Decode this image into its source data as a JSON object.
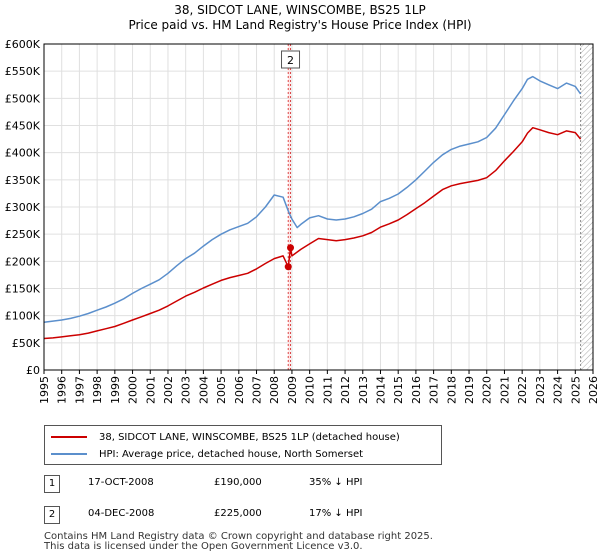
{
  "title_line1": "38, SIDCOT LANE, WINSCOMBE, BS25 1LP",
  "title_line2": "Price paid vs. HM Land Registry's House Price Index (HPI)",
  "legend": {
    "property_label": "38, SIDCOT LANE, WINSCOMBE, BS25 1LP (detached house)",
    "hpi_label": "HPI: Average price, detached house, North Somerset"
  },
  "transactions": [
    {
      "num": "1",
      "date": "17-OCT-2008",
      "price": "£190,000",
      "delta": "35% ↓ HPI"
    },
    {
      "num": "2",
      "date": "04-DEC-2008",
      "price": "£225,000",
      "delta": "17% ↓ HPI"
    }
  ],
  "footer_line1": "Contains HM Land Registry data © Crown copyright and database right 2025.",
  "footer_line2": "This data is licensed under the Open Government Licence v3.0.",
  "colors": {
    "property": "#cc0000",
    "hpi": "#5b8fcc",
    "grid": "#e0e0e0",
    "marker_band": "#ffdddd"
  },
  "chart_data": {
    "type": "line",
    "xlim": [
      1995,
      2026
    ],
    "ylim": [
      0,
      600000
    ],
    "x_ticks": [
      1995,
      1996,
      1997,
      1998,
      1999,
      2000,
      2001,
      2002,
      2003,
      2004,
      2005,
      2006,
      2007,
      2008,
      2009,
      2010,
      2011,
      2012,
      2013,
      2014,
      2015,
      2016,
      2017,
      2018,
      2019,
      2020,
      2021,
      2022,
      2023,
      2024,
      2025,
      2026
    ],
    "y_ticks": [
      {
        "value": 0,
        "label": "£0"
      },
      {
        "value": 50000,
        "label": "£50K"
      },
      {
        "value": 100000,
        "label": "£100K"
      },
      {
        "value": 150000,
        "label": "£150K"
      },
      {
        "value": 200000,
        "label": "£200K"
      },
      {
        "value": 250000,
        "label": "£250K"
      },
      {
        "value": 300000,
        "label": "£300K"
      },
      {
        "value": 350000,
        "label": "£350K"
      },
      {
        "value": 400000,
        "label": "£400K"
      },
      {
        "value": 450000,
        "label": "£450K"
      },
      {
        "value": 500000,
        "label": "£500K"
      },
      {
        "value": 550000,
        "label": "£550K"
      },
      {
        "value": 600000,
        "label": "£600K"
      }
    ],
    "series": [
      {
        "name": "HPI: Average price, detached house, North Somerset",
        "x": [
          1995,
          1995.5,
          1996,
          1996.5,
          1997,
          1997.5,
          1998,
          1998.5,
          1999,
          1999.5,
          2000,
          2000.5,
          2001,
          2001.5,
          2002,
          2002.5,
          2003,
          2003.5,
          2004,
          2004.5,
          2005,
          2005.5,
          2006,
          2006.5,
          2007,
          2007.5,
          2008,
          2008.5,
          2008.8,
          2009,
          2009.3,
          2009.5,
          2010,
          2010.5,
          2011,
          2011.5,
          2012,
          2012.5,
          2013,
          2013.5,
          2014,
          2014.5,
          2015,
          2015.5,
          2016,
          2016.5,
          2017,
          2017.5,
          2018,
          2018.5,
          2019,
          2019.5,
          2020,
          2020.5,
          2021,
          2021.5,
          2022,
          2022.3,
          2022.6,
          2023,
          2023.5,
          2024,
          2024.5,
          2025,
          2025.3
        ],
        "values": [
          88000,
          90000,
          92000,
          95000,
          99000,
          104000,
          110000,
          116000,
          123000,
          131000,
          141000,
          150000,
          158000,
          166000,
          178000,
          192000,
          205000,
          215000,
          228000,
          240000,
          250000,
          258000,
          264000,
          270000,
          282000,
          300000,
          322000,
          318000,
          292000,
          278000,
          262000,
          268000,
          280000,
          284000,
          278000,
          276000,
          278000,
          282000,
          288000,
          296000,
          310000,
          316000,
          324000,
          336000,
          350000,
          366000,
          382000,
          396000,
          406000,
          412000,
          416000,
          420000,
          428000,
          445000,
          470000,
          495000,
          518000,
          535000,
          540000,
          532000,
          525000,
          518000,
          528000,
          522000,
          508000
        ]
      },
      {
        "name": "38, SIDCOT LANE, WINSCOMBE, BS25 1LP (detached house)",
        "x": [
          1995,
          1995.5,
          1996,
          1996.5,
          1997,
          1997.5,
          1998,
          1998.5,
          1999,
          1999.5,
          2000,
          2000.5,
          2001,
          2001.5,
          2002,
          2002.5,
          2003,
          2003.5,
          2004,
          2004.5,
          2005,
          2005.5,
          2006,
          2006.5,
          2007,
          2007.5,
          2008,
          2008.5,
          2008.79,
          2008.795,
          2008.92,
          2009,
          2009.5,
          2010,
          2010.5,
          2011,
          2011.5,
          2012,
          2012.5,
          2013,
          2013.5,
          2014,
          2014.5,
          2015,
          2015.5,
          2016,
          2016.5,
          2017,
          2017.5,
          2018,
          2018.5,
          2019,
          2019.5,
          2020,
          2020.5,
          2021,
          2021.5,
          2022,
          2022.3,
          2022.6,
          2023,
          2023.5,
          2024,
          2024.5,
          2025,
          2025.3
        ],
        "values": [
          58000,
          59000,
          61000,
          63000,
          65000,
          68000,
          72000,
          76000,
          80000,
          86000,
          92000,
          98000,
          104000,
          110000,
          118000,
          127000,
          136000,
          143000,
          151000,
          158000,
          165000,
          170000,
          174000,
          178000,
          186000,
          196000,
          205000,
          210000,
          190000,
          190000,
          225000,
          210000,
          222000,
          232000,
          242000,
          240000,
          238000,
          240000,
          243000,
          247000,
          253000,
          263000,
          269000,
          276000,
          286000,
          297000,
          308000,
          320000,
          332000,
          339000,
          343000,
          346000,
          349000,
          354000,
          367000,
          385000,
          402000,
          420000,
          436000,
          446000,
          442000,
          437000,
          433000,
          440000,
          437000,
          425000
        ]
      }
    ],
    "markers": [
      {
        "label": "1",
        "x": 2008.79,
        "value": 190000
      },
      {
        "label": "2",
        "x": 2008.92,
        "value": 225000
      }
    ],
    "marker_box_label": "2",
    "projection_start": 2025.3
  }
}
